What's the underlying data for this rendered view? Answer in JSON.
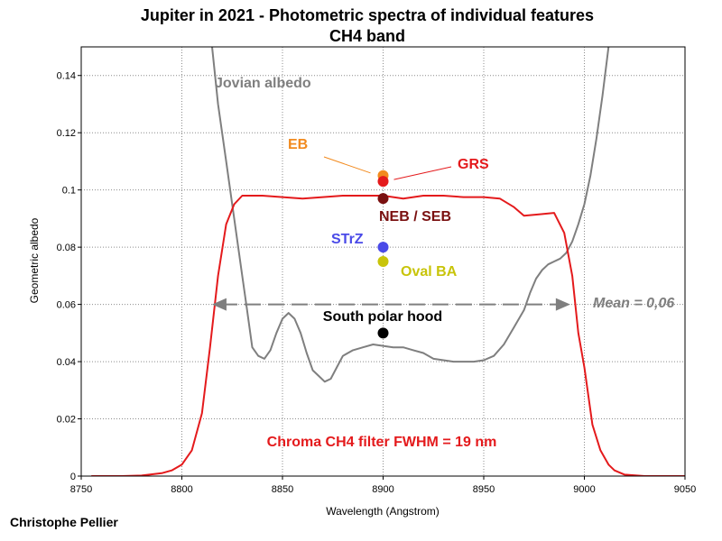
{
  "chart_data": {
    "type": "line",
    "title": "Jupiter in 2021 - Photometric spectra of individual features",
    "subtitle": "CH4 band",
    "xlabel": "Wavelength (Angstrom)",
    "ylabel": "Geometric albedo",
    "xlim": [
      8750,
      9050
    ],
    "ylim": [
      0,
      0.15
    ],
    "x_ticks": [
      8750,
      8800,
      8850,
      8900,
      8950,
      9000,
      9050
    ],
    "x_tick_labels": [
      "8750",
      "8800",
      "8850",
      "8900",
      "8950",
      "9000",
      "9050"
    ],
    "y_ticks": [
      0,
      0.02,
      0.04,
      0.06,
      0.08,
      0.1,
      0.12,
      0.14
    ],
    "y_tick_labels": [
      "0",
      "0.02",
      "0.04",
      "0.06",
      "0.08",
      "0.1",
      "0.12",
      "0.14"
    ],
    "grid": true,
    "series": [
      {
        "name": "Jovian albedo",
        "color": "#7f7f7f",
        "points": [
          [
            8815,
            0.15
          ],
          [
            8818,
            0.13
          ],
          [
            8822,
            0.11
          ],
          [
            8826,
            0.09
          ],
          [
            8830,
            0.07
          ],
          [
            8832,
            0.06
          ],
          [
            8835,
            0.045
          ],
          [
            8838,
            0.042
          ],
          [
            8841,
            0.041
          ],
          [
            8844,
            0.044
          ],
          [
            8847,
            0.05
          ],
          [
            8850,
            0.055
          ],
          [
            8853,
            0.057
          ],
          [
            8856,
            0.055
          ],
          [
            8859,
            0.05
          ],
          [
            8862,
            0.043
          ],
          [
            8865,
            0.037
          ],
          [
            8868,
            0.035
          ],
          [
            8871,
            0.033
          ],
          [
            8874,
            0.034
          ],
          [
            8877,
            0.038
          ],
          [
            8880,
            0.042
          ],
          [
            8885,
            0.044
          ],
          [
            8890,
            0.045
          ],
          [
            8895,
            0.046
          ],
          [
            8900,
            0.0455
          ],
          [
            8905,
            0.045
          ],
          [
            8910,
            0.045
          ],
          [
            8915,
            0.044
          ],
          [
            8920,
            0.043
          ],
          [
            8925,
            0.041
          ],
          [
            8930,
            0.0405
          ],
          [
            8935,
            0.04
          ],
          [
            8940,
            0.04
          ],
          [
            8945,
            0.04
          ],
          [
            8950,
            0.0405
          ],
          [
            8955,
            0.042
          ],
          [
            8960,
            0.046
          ],
          [
            8965,
            0.052
          ],
          [
            8970,
            0.058
          ],
          [
            8973,
            0.064
          ],
          [
            8976,
            0.069
          ],
          [
            8979,
            0.072
          ],
          [
            8982,
            0.074
          ],
          [
            8985,
            0.075
          ],
          [
            8988,
            0.076
          ],
          [
            8991,
            0.078
          ],
          [
            8994,
            0.082
          ],
          [
            8997,
            0.088
          ],
          [
            9000,
            0.095
          ],
          [
            9003,
            0.105
          ],
          [
            9006,
            0.118
          ],
          [
            9009,
            0.133
          ],
          [
            9012,
            0.15
          ]
        ]
      },
      {
        "name": "Chroma CH4 filter",
        "color": "#e41a1c",
        "points": [
          [
            8755,
            0
          ],
          [
            8770,
            0
          ],
          [
            8780,
            0.0002
          ],
          [
            8790,
            0.001
          ],
          [
            8795,
            0.002
          ],
          [
            8800,
            0.004
          ],
          [
            8805,
            0.009
          ],
          [
            8810,
            0.022
          ],
          [
            8814,
            0.045
          ],
          [
            8818,
            0.07
          ],
          [
            8822,
            0.088
          ],
          [
            8826,
            0.095
          ],
          [
            8830,
            0.098
          ],
          [
            8840,
            0.098
          ],
          [
            8850,
            0.0975
          ],
          [
            8860,
            0.097
          ],
          [
            8870,
            0.0975
          ],
          [
            8880,
            0.098
          ],
          [
            8890,
            0.098
          ],
          [
            8900,
            0.098
          ],
          [
            8910,
            0.097
          ],
          [
            8920,
            0.098
          ],
          [
            8930,
            0.098
          ],
          [
            8940,
            0.0975
          ],
          [
            8950,
            0.0975
          ],
          [
            8958,
            0.097
          ],
          [
            8965,
            0.094
          ],
          [
            8970,
            0.091
          ],
          [
            8978,
            0.0915
          ],
          [
            8985,
            0.092
          ],
          [
            8990,
            0.085
          ],
          [
            8994,
            0.07
          ],
          [
            8997,
            0.05
          ],
          [
            9000,
            0.038
          ],
          [
            9004,
            0.018
          ],
          [
            9008,
            0.009
          ],
          [
            9012,
            0.004
          ],
          [
            9015,
            0.002
          ],
          [
            9020,
            0.0005
          ],
          [
            9030,
            0
          ],
          [
            9050,
            0
          ]
        ]
      }
    ],
    "markers": [
      {
        "label": "EB",
        "x": 8900,
        "y": 0.105,
        "color": "#f28a1e"
      },
      {
        "label": "GRS",
        "x": 8900,
        "y": 0.103,
        "color": "#e41a1c"
      },
      {
        "label": "NEB / SEB",
        "x": 8900,
        "y": 0.097,
        "color": "#7a1010"
      },
      {
        "label": "STrZ",
        "x": 8900,
        "y": 0.08,
        "color": "#4a4ae8"
      },
      {
        "label": "Oval BA",
        "x": 8900,
        "y": 0.075,
        "color": "#c8c40a"
      },
      {
        "label": "South polar hood",
        "x": 8900,
        "y": 0.05,
        "color": "#000000"
      }
    ],
    "mean_line": {
      "label": "Mean = 0,06",
      "y": 0.06,
      "x_start": 8815,
      "x_end": 8993,
      "color": "#7f7f7f"
    },
    "annotations": {
      "albedo_label": "Jovian albedo",
      "filter_label": "Chroma CH4 filter FWHM = 19 nm"
    }
  },
  "credit": "Christophe Pellier"
}
